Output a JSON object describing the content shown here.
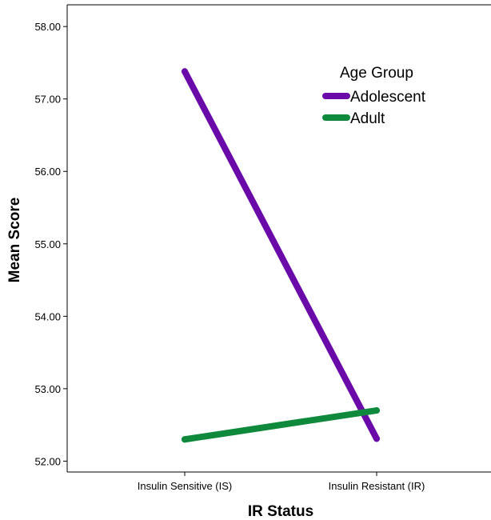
{
  "chart_data": {
    "type": "line",
    "xlabel": "IR Status",
    "ylabel": "Mean Score",
    "categories": [
      "Insulin Sensitive (IS)",
      "Insulin Resistant (IR)"
    ],
    "ylim": [
      51.85,
      58.3
    ],
    "yticks": [
      "52.00",
      "53.00",
      "54.00",
      "55.00",
      "56.00",
      "57.00",
      "58.00"
    ],
    "grid": false,
    "legend": {
      "title": "Age Group",
      "placement": "top-right"
    },
    "series": [
      {
        "name": "Adolescent",
        "values": [
          57.38,
          52.31
        ],
        "color": "#6a0aa8"
      },
      {
        "name": "Adult",
        "values": [
          52.3,
          52.7
        ],
        "color": "#0f8a3c"
      }
    ]
  }
}
